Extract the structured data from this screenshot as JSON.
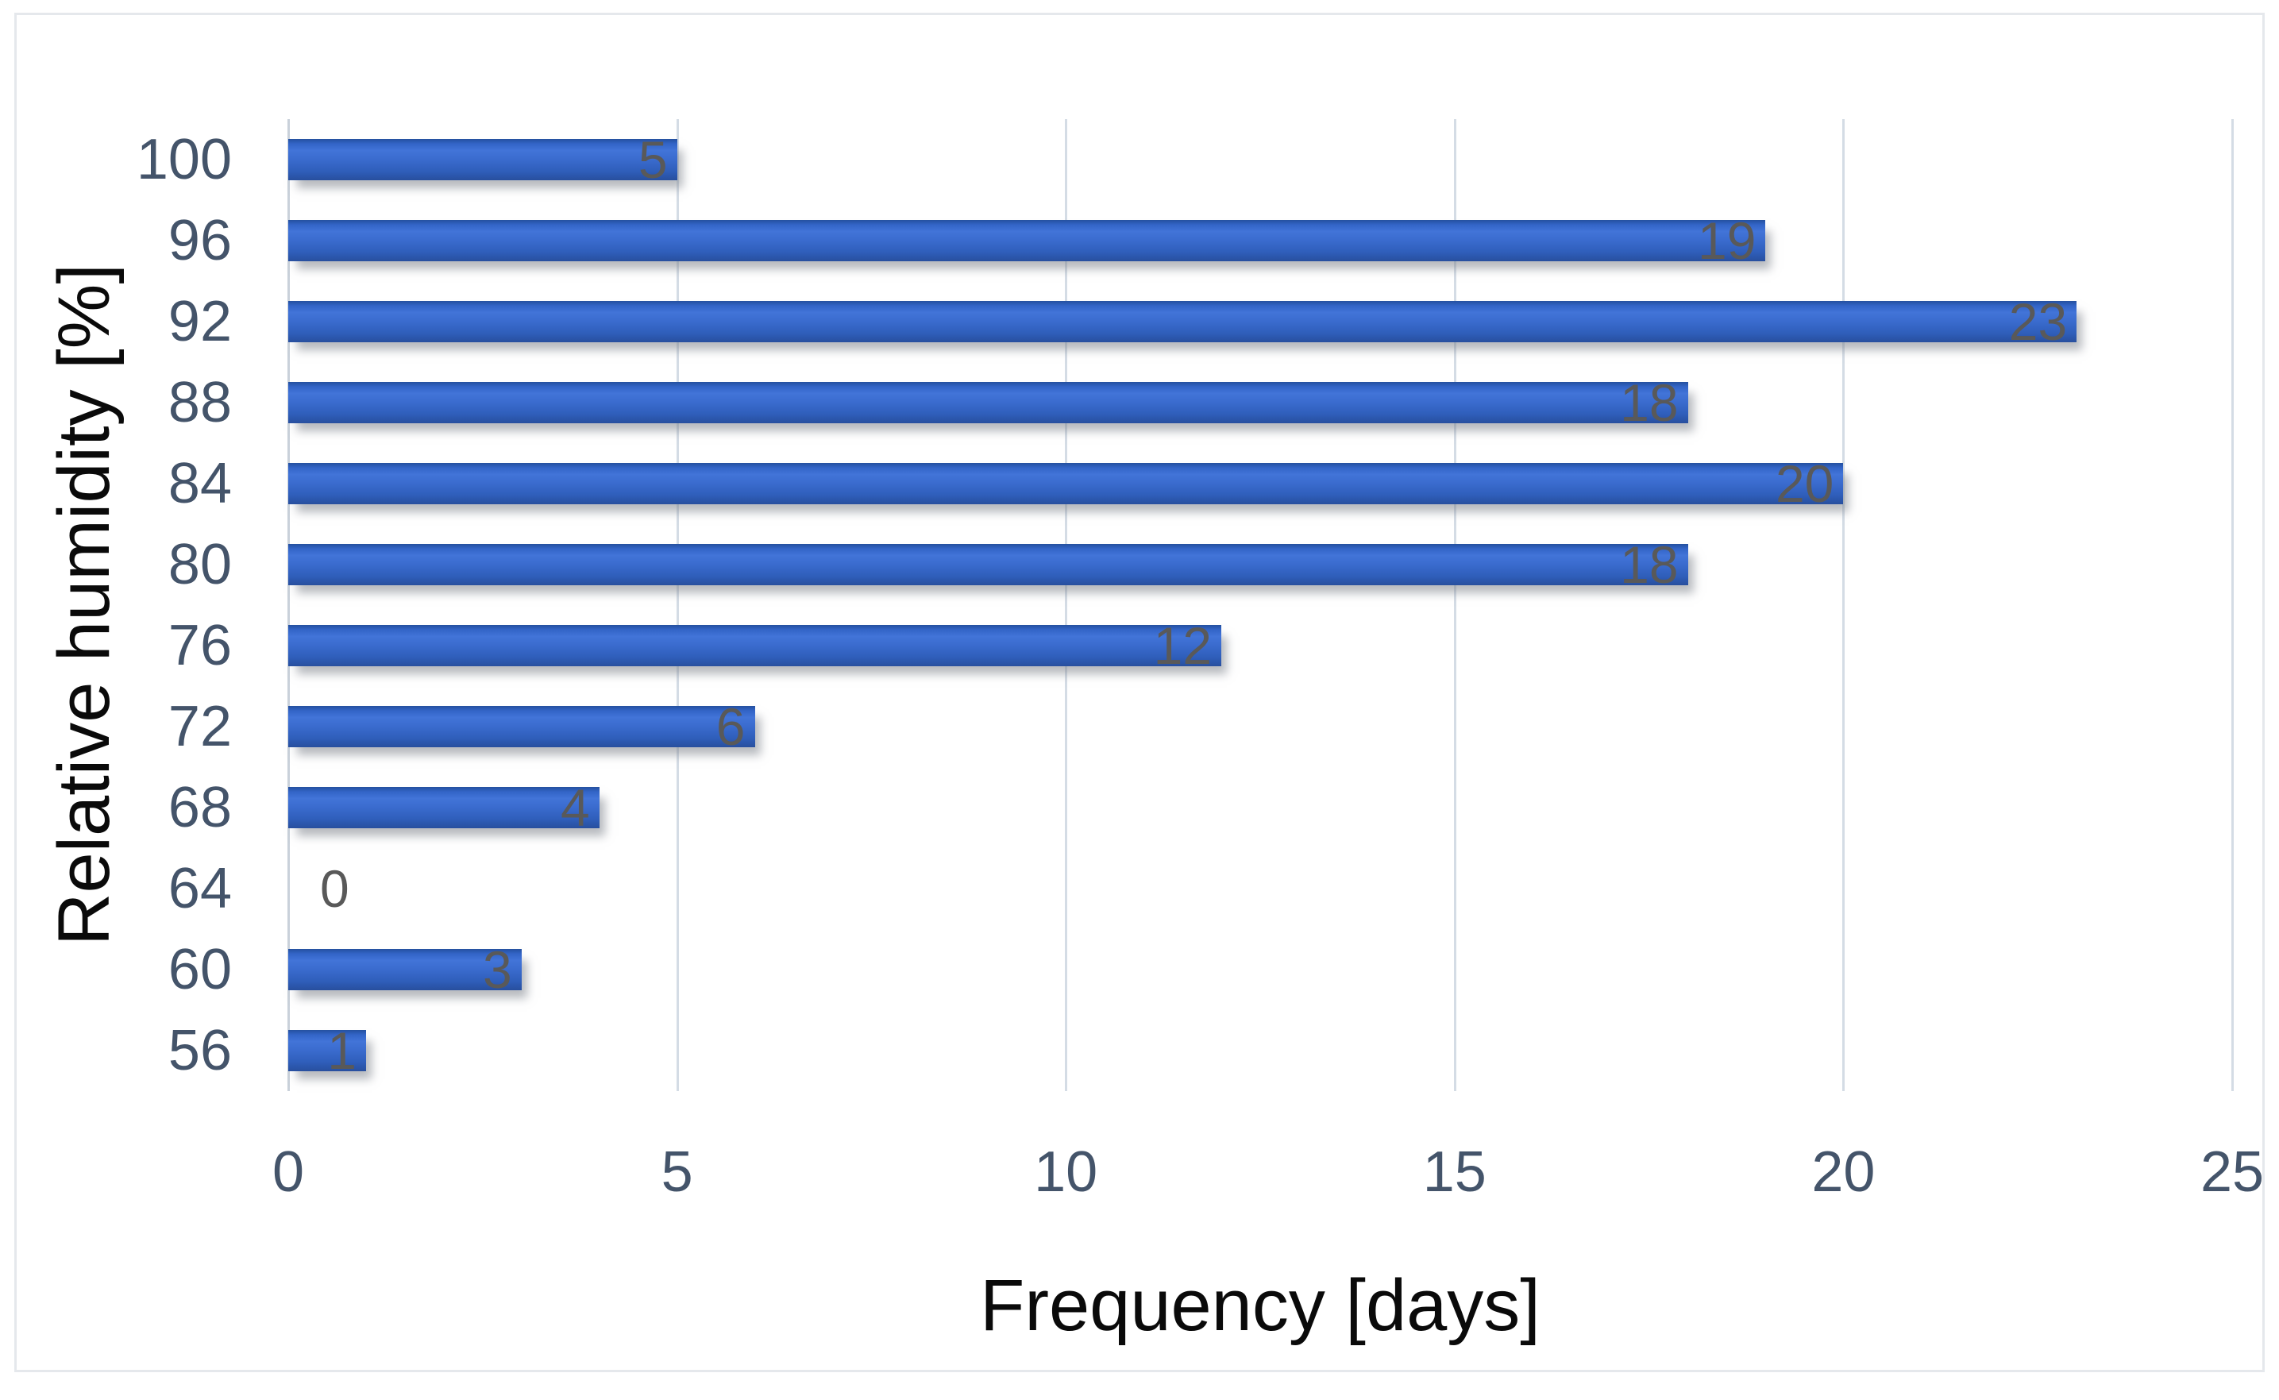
{
  "chart_data": {
    "type": "bar",
    "orientation": "horizontal",
    "categories": [
      "100",
      "96",
      "92",
      "88",
      "84",
      "80",
      "76",
      "72",
      "68",
      "64",
      "60",
      "56"
    ],
    "values": [
      5,
      19,
      23,
      18,
      20,
      18,
      12,
      6,
      4,
      0,
      3,
      1
    ],
    "xlabel": "Frequency [days]",
    "ylabel": "Relative humidity [%]",
    "xlim": [
      0,
      25
    ],
    "xticks": [
      0,
      5,
      10,
      15,
      20,
      25
    ],
    "grid": "vertical",
    "legend": "none",
    "data_labels": "inside-end",
    "colors": {
      "bar_fill": "#3565c8",
      "data_label": "#595959",
      "tick_label": "#44546a",
      "axis_title": "#0a0a0a",
      "gridline": "#d4dce5",
      "chart_border": "#e5e8ec",
      "background": "#ffffff"
    }
  }
}
